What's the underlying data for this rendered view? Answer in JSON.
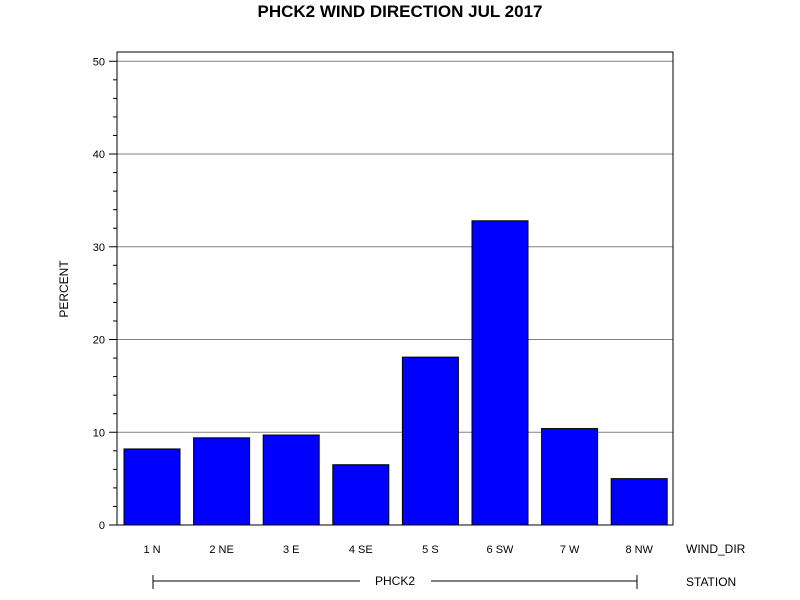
{
  "chart_data": {
    "type": "bar",
    "title": "PHCK2 WIND DIRECTION JUL 2017",
    "ylabel": "PERCENT",
    "xlabel": "WIND_DIR",
    "group_label": "STATION",
    "group_value": "PHCK2",
    "categories": [
      "1 N",
      "2 NE",
      "3 E",
      "4 SE",
      "5 S",
      "6 SW",
      "7 W",
      "8 NW"
    ],
    "values": [
      8.2,
      9.4,
      9.7,
      6.5,
      18.1,
      32.8,
      10.4,
      5.0
    ],
    "ylim": [
      0,
      51
    ],
    "yticks": [
      0,
      10,
      20,
      30,
      40,
      50
    ],
    "grid": true,
    "bar_color": "#0000ff"
  }
}
